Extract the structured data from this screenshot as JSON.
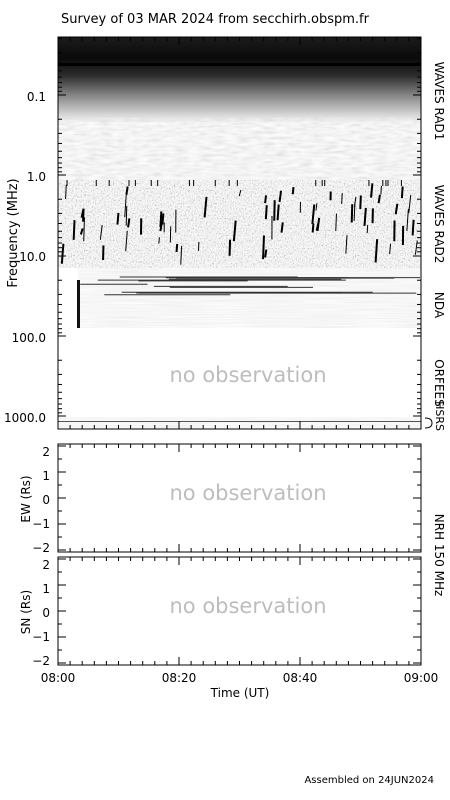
{
  "title": "Survey of 03 MAR 2024 from secchirh.obspm.fr",
  "footer": "Assembled on 24JUN2024",
  "no_observation_text": "no observation",
  "chart_data": [
    {
      "type": "heatmap",
      "name": "spectrogram",
      "ylabel": "Frequency (MHz)",
      "scale": "log",
      "y_ticks": [
        "0.1",
        "1.0",
        "10.0",
        "100.0",
        "1000.0"
      ],
      "instruments": [
        "WAVES RAD1",
        "WAVES RAD2",
        "NDA",
        "ORFEES",
        "HSRS"
      ],
      "orfees_no_observation": true
    },
    {
      "type": "line",
      "name": "nrh-ew",
      "ylabel": "EW (Rs)",
      "y_ticks": [
        "2",
        "1",
        "0",
        "−1",
        "−2"
      ],
      "ylim": [
        -2,
        2
      ],
      "no_observation": true
    },
    {
      "type": "line",
      "name": "nrh-sn",
      "ylabel": "SN (Rs)",
      "y_ticks": [
        "2",
        "1",
        "0",
        "−1",
        "−2"
      ],
      "ylim": [
        -2,
        2
      ],
      "no_observation": true
    }
  ],
  "nrh_label": "NRH 150 MHz",
  "x_axis": {
    "label": "Time (UT)",
    "ticks": [
      "08:00",
      "08:20",
      "08:40",
      "09:00"
    ]
  }
}
